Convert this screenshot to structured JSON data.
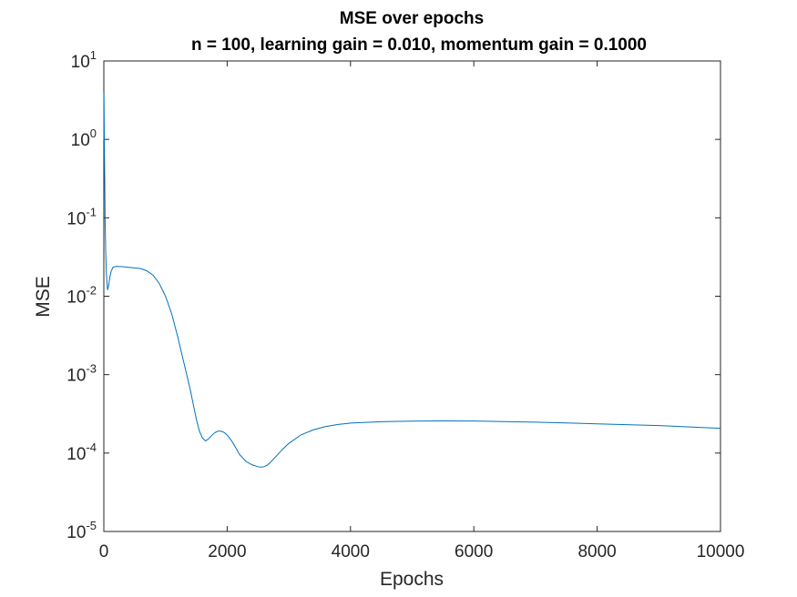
{
  "figure": {
    "title_line1": "MSE over epochs",
    "title_line2": "n = 100, learning gain = 0.010, momentum gain = 0.1000"
  },
  "chart_data": {
    "type": "line",
    "title": "MSE over epochs",
    "subtitle": "n = 100, learning gain = 0.010, momentum gain = 0.1000",
    "xlabel": "Epochs",
    "ylabel": "MSE",
    "xlim": [
      0,
      10000
    ],
    "ylim": [
      1e-05,
      10
    ],
    "yscale": "log",
    "grid": false,
    "line_color": "#0072BD",
    "x_ticks": [
      {
        "value": 0,
        "label": "0"
      },
      {
        "value": 2000,
        "label": "2000"
      },
      {
        "value": 4000,
        "label": "4000"
      },
      {
        "value": 6000,
        "label": "6000"
      },
      {
        "value": 8000,
        "label": "8000"
      },
      {
        "value": 10000,
        "label": "10000"
      }
    ],
    "y_ticks": [
      {
        "value": 10,
        "base": "10",
        "exp": "1"
      },
      {
        "value": 1,
        "base": "10",
        "exp": "0"
      },
      {
        "value": 0.1,
        "base": "10",
        "exp": "-1"
      },
      {
        "value": 0.01,
        "base": "10",
        "exp": "-2"
      },
      {
        "value": 0.001,
        "base": "10",
        "exp": "-3"
      },
      {
        "value": 0.0001,
        "base": "10",
        "exp": "-4"
      },
      {
        "value": 1e-05,
        "base": "10",
        "exp": "-5"
      }
    ],
    "series": [
      {
        "x": [
          0,
          2,
          5,
          10,
          15,
          20,
          30,
          40,
          60,
          80,
          100,
          120,
          150,
          200,
          300,
          400,
          500,
          600,
          700,
          800,
          900,
          1000,
          1100,
          1200,
          1300,
          1400,
          1450,
          1500,
          1550,
          1600,
          1650,
          1700,
          1750,
          1800,
          1850,
          1900,
          1950,
          2000,
          2050,
          2100,
          2150,
          2200,
          2300,
          2400,
          2500,
          2550,
          2600,
          2650,
          2700,
          2800,
          2900,
          3000,
          3200,
          3400,
          3600,
          3800,
          4000,
          4500,
          5000,
          5500,
          6000,
          7000,
          8000,
          9000,
          10000
        ],
        "y": [
          1.0,
          4.0,
          2.0,
          0.6,
          0.3,
          0.1,
          0.04,
          0.02,
          0.012,
          0.014,
          0.018,
          0.021,
          0.0235,
          0.024,
          0.0238,
          0.0234,
          0.023,
          0.0225,
          0.021,
          0.0185,
          0.0145,
          0.01,
          0.006,
          0.003,
          0.0014,
          0.00065,
          0.00042,
          0.00027,
          0.00019,
          0.000155,
          0.000143,
          0.000152,
          0.000168,
          0.000182,
          0.00019,
          0.00019,
          0.000183,
          0.00017,
          0.000152,
          0.000132,
          0.000113,
          9.6e-05,
          7.9e-05,
          7.1e-05,
          6.7e-05,
          6.6e-05,
          6.7e-05,
          7e-05,
          7.6e-05,
          9.2e-05,
          0.000112,
          0.000133,
          0.000171,
          0.000198,
          0.000218,
          0.000232,
          0.000241,
          0.000251,
          0.000255,
          0.000257,
          0.000256,
          0.000248,
          0.000236,
          0.000224,
          0.000207
        ]
      }
    ]
  }
}
